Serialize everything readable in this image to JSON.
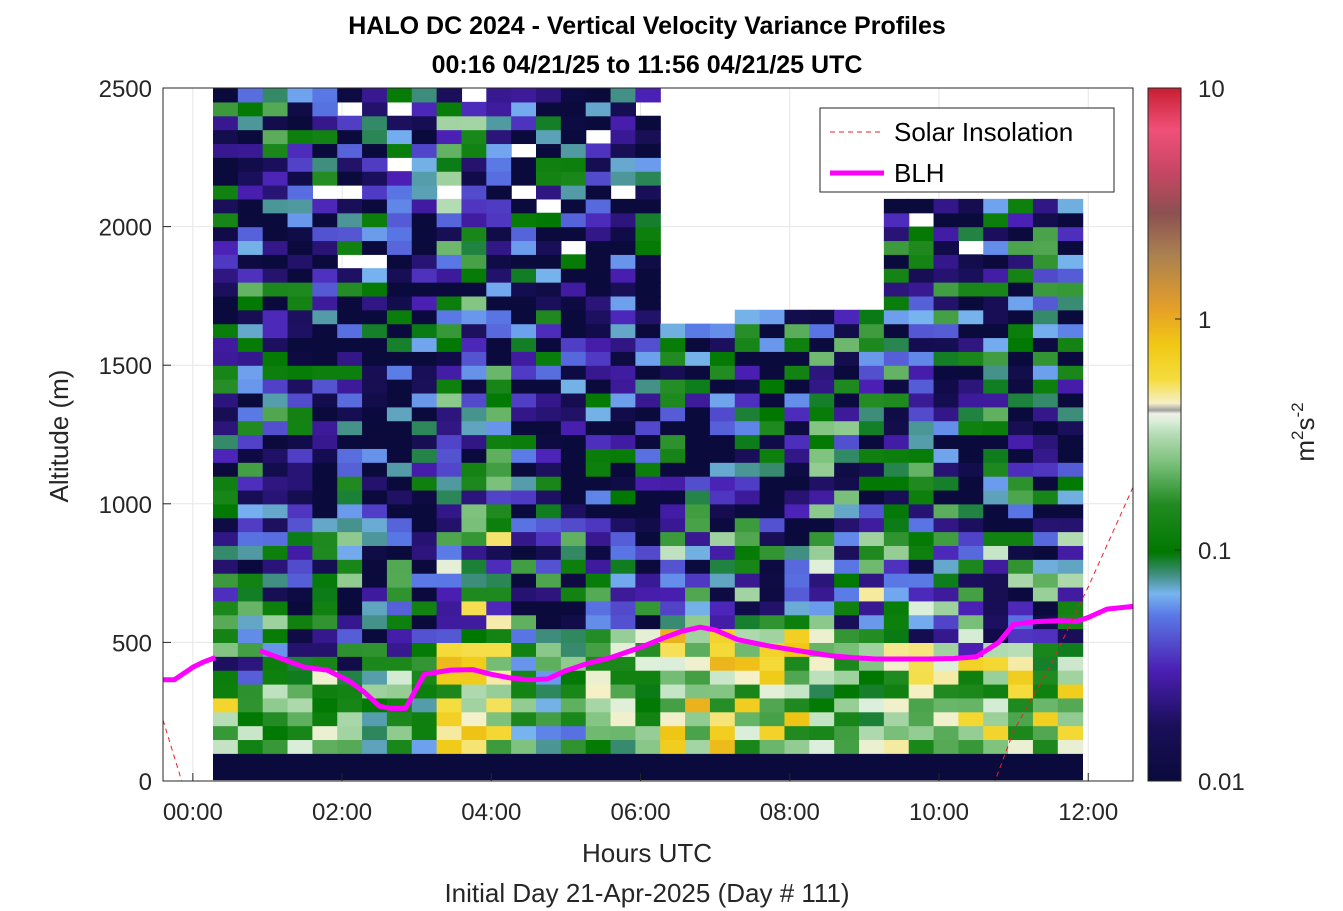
{
  "chart_data": {
    "type": "heatmap",
    "title": "HALO DC 2024 - Vertical Velocity Variance Profiles",
    "subtitle": "00:16 04/21/25 to 11:56 04/21/25  UTC",
    "xlabel": "Hours UTC",
    "xlabel2": "Initial Day 21-Apr-2025 (Day # 111)",
    "ylabel": "Altitude (m)",
    "colorbar_label": "m",
    "colorbar_label_sup1": "2",
    "colorbar_label_mid": "s",
    "colorbar_label_sup2": "-2",
    "colorbar_scale": "log",
    "colorbar_range": [
      0.01,
      10
    ],
    "colorbar_ticks": [
      {
        "value": 10,
        "label": "10"
      },
      {
        "value": 1,
        "label": "1"
      },
      {
        "value": 0.1,
        "label": "0.1"
      },
      {
        "value": 0.01,
        "label": "0.01"
      }
    ],
    "xlim": [
      -0.4,
      12.6
    ],
    "ylim": [
      0,
      2500
    ],
    "x_ticks": [
      {
        "value": 0,
        "label": "00:00"
      },
      {
        "value": 2,
        "label": "02:00"
      },
      {
        "value": 4,
        "label": "04:00"
      },
      {
        "value": 6,
        "label": "06:00"
      },
      {
        "value": 8,
        "label": "08:00"
      },
      {
        "value": 10,
        "label": "10:00"
      },
      {
        "value": 12,
        "label": "12:00"
      }
    ],
    "y_ticks": [
      {
        "value": 0,
        "label": "0"
      },
      {
        "value": 500,
        "label": "500"
      },
      {
        "value": 1000,
        "label": "1000"
      },
      {
        "value": 1500,
        "label": "1500"
      },
      {
        "value": 2000,
        "label": "2000"
      },
      {
        "value": 2500,
        "label": "2500"
      }
    ],
    "grid": true,
    "legend": {
      "placement": "top-right",
      "entries": [
        {
          "name": "Solar Insolation",
          "color": "#e8202a",
          "style": "dashed"
        },
        {
          "name": "BLH",
          "color": "#ff00ff",
          "style": "solid"
        }
      ]
    },
    "heatmap": {
      "x_start": 0.27,
      "x_end": 11.93,
      "x_step": 0.333,
      "y_start": 100,
      "y_step": 50,
      "y_end": 2500,
      "bottom_band_value": 0.01,
      "profiles": [
        {
          "x": 0.27,
          "top": 2500,
          "near_surface": 0.25,
          "upper": 0.02
        },
        {
          "x": 1.27,
          "top": 2500,
          "near_surface": 0.2,
          "upper": 0.015
        },
        {
          "x": 2.27,
          "top": 2500,
          "near_surface": 0.15,
          "upper": 0.012
        },
        {
          "x": 3.27,
          "top": 2500,
          "near_surface": 0.35,
          "upper": 0.03
        },
        {
          "x": 4.27,
          "top": 2500,
          "near_surface": 0.12,
          "upper": 0.015
        },
        {
          "x": 5.27,
          "top": 2500,
          "near_surface": 0.2,
          "upper": 0.012
        },
        {
          "x": 6.27,
          "top": 1650,
          "near_surface": 0.4,
          "upper": 0.02
        },
        {
          "x": 7.27,
          "top": 1700,
          "near_surface": 0.35,
          "upper": 0.02
        },
        {
          "x": 8.27,
          "top": 1700,
          "near_surface": 0.2,
          "upper": 0.025
        },
        {
          "x": 9.27,
          "top": 2100,
          "near_surface": 0.3,
          "upper": 0.02
        },
        {
          "x": 10.27,
          "top": 2100,
          "near_surface": 0.3,
          "upper": 0.02
        },
        {
          "x": 11.27,
          "top": 2100,
          "near_surface": 0.4,
          "upper": 0.02
        }
      ]
    },
    "series": [
      {
        "name": "BLH",
        "color": "#ff00ff",
        "x": [
          -0.4,
          -0.25,
          0.0,
          0.15,
          0.3,
          0.55,
          0.9,
          1.2,
          1.5,
          1.8,
          2.1,
          2.3,
          2.5,
          2.65,
          2.85,
          3.1,
          3.45,
          3.75,
          4.0,
          4.25,
          4.5,
          4.75,
          5.0,
          5.3,
          5.6,
          6.0,
          6.3,
          6.55,
          6.8,
          7.0,
          7.3,
          7.7,
          8.0,
          8.3,
          8.55,
          8.85,
          9.15,
          9.5,
          9.85,
          10.2,
          10.5,
          10.8,
          11.0,
          11.3,
          11.6,
          11.85,
          12.0,
          12.25,
          12.6
        ],
        "y": [
          365,
          365,
          410,
          430,
          445,
          null,
          470,
          440,
          410,
          400,
          360,
          320,
          270,
          262,
          262,
          385,
          400,
          402,
          385,
          372,
          365,
          368,
          398,
          425,
          445,
          482,
          515,
          540,
          555,
          545,
          510,
          488,
          475,
          462,
          452,
          445,
          440,
          440,
          440,
          442,
          448,
          500,
          565,
          575,
          578,
          576,
          590,
          620,
          630
        ]
      },
      {
        "name": "Solar Insolation",
        "color": "#e8202a",
        "x": [
          -0.4,
          -0.15,
          0.0,
          10.25,
          10.5,
          10.75,
          11.0,
          11.5,
          12.0,
          12.6
        ],
        "y": [
          220,
          0,
          0,
          0,
          0,
          0,
          180,
          420,
          700,
          1060
        ]
      }
    ]
  }
}
